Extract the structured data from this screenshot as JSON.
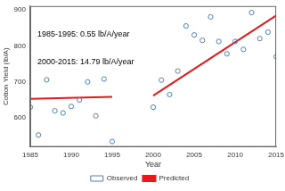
{
  "chart_data": {
    "type": "scatter",
    "x_label": "Year",
    "y_label": "Cotton Yield (lb/A)",
    "annotations": [
      "1985-1995: 0.55 lb/A/year",
      "2000-2015: 14.79 lb/A/year"
    ],
    "series": [
      {
        "name": "Observed",
        "type": "scatter",
        "color": "#4f81bd",
        "marker": "circle",
        "x": [
          1985,
          1986,
          1987,
          1988,
          1989,
          1990,
          1991,
          1992,
          1993,
          1994,
          1995,
          2000,
          2001,
          2002,
          2003,
          2004,
          2005,
          2006,
          2007,
          2008,
          2009,
          2010,
          2011,
          2012,
          2013,
          2014,
          2015
        ],
        "values": [
          630,
          553,
          706,
          620,
          614,
          632,
          650,
          700,
          606,
          708,
          535,
          630,
          705,
          665,
          730,
          855,
          830,
          815,
          880,
          812,
          778,
          812,
          790,
          892,
          820,
          838,
          770
        ]
      },
      {
        "name": "Predicted",
        "type": "line",
        "color": "#e41a1c",
        "line_style": "solid",
        "x": [
          1985,
          1995,
          null,
          2000,
          2015
        ],
        "values": [
          653,
          658.5,
          null,
          662,
          884
        ]
      }
    ],
    "xlim": [
      1985,
      2015
    ],
    "xticks": [
      1985,
      1990,
      1995,
      2000,
      2005,
      2010,
      2015
    ],
    "ylim": [
      520,
      910
    ],
    "yticks": [
      600,
      700,
      800,
      900
    ],
    "grid": false,
    "legend": "bottom"
  }
}
